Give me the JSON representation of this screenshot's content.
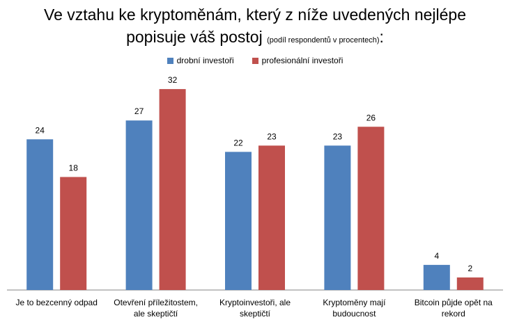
{
  "chart_data": {
    "type": "bar",
    "title_main": "Ve vztahu ke kryptoměnám, který z níže uvedených nejlépe",
    "title_main2": "popisuje váš postoj",
    "title_sub": "(podíl respondentů v procentech)",
    "title_end": ":",
    "categories": [
      [
        "Je to bezcenný odpad"
      ],
      [
        "Otevření příležitostem,",
        "ale skeptičtí"
      ],
      [
        "Kryptoinvestoři, ale",
        "skeptičtí"
      ],
      [
        "Kryptoměny mají",
        "budoucnost"
      ],
      [
        "Bitcoin půjde opět na",
        "rekord"
      ]
    ],
    "series": [
      {
        "name": "drobní investoři",
        "color": "#4f81bd",
        "values": [
          24,
          27,
          22,
          23,
          4
        ]
      },
      {
        "name": "profesionální investoři",
        "color": "#c0504d",
        "values": [
          18,
          32,
          23,
          26,
          2
        ]
      }
    ],
    "ylim": [
      0,
      35
    ],
    "legend_position": "top-center",
    "grid": false
  }
}
